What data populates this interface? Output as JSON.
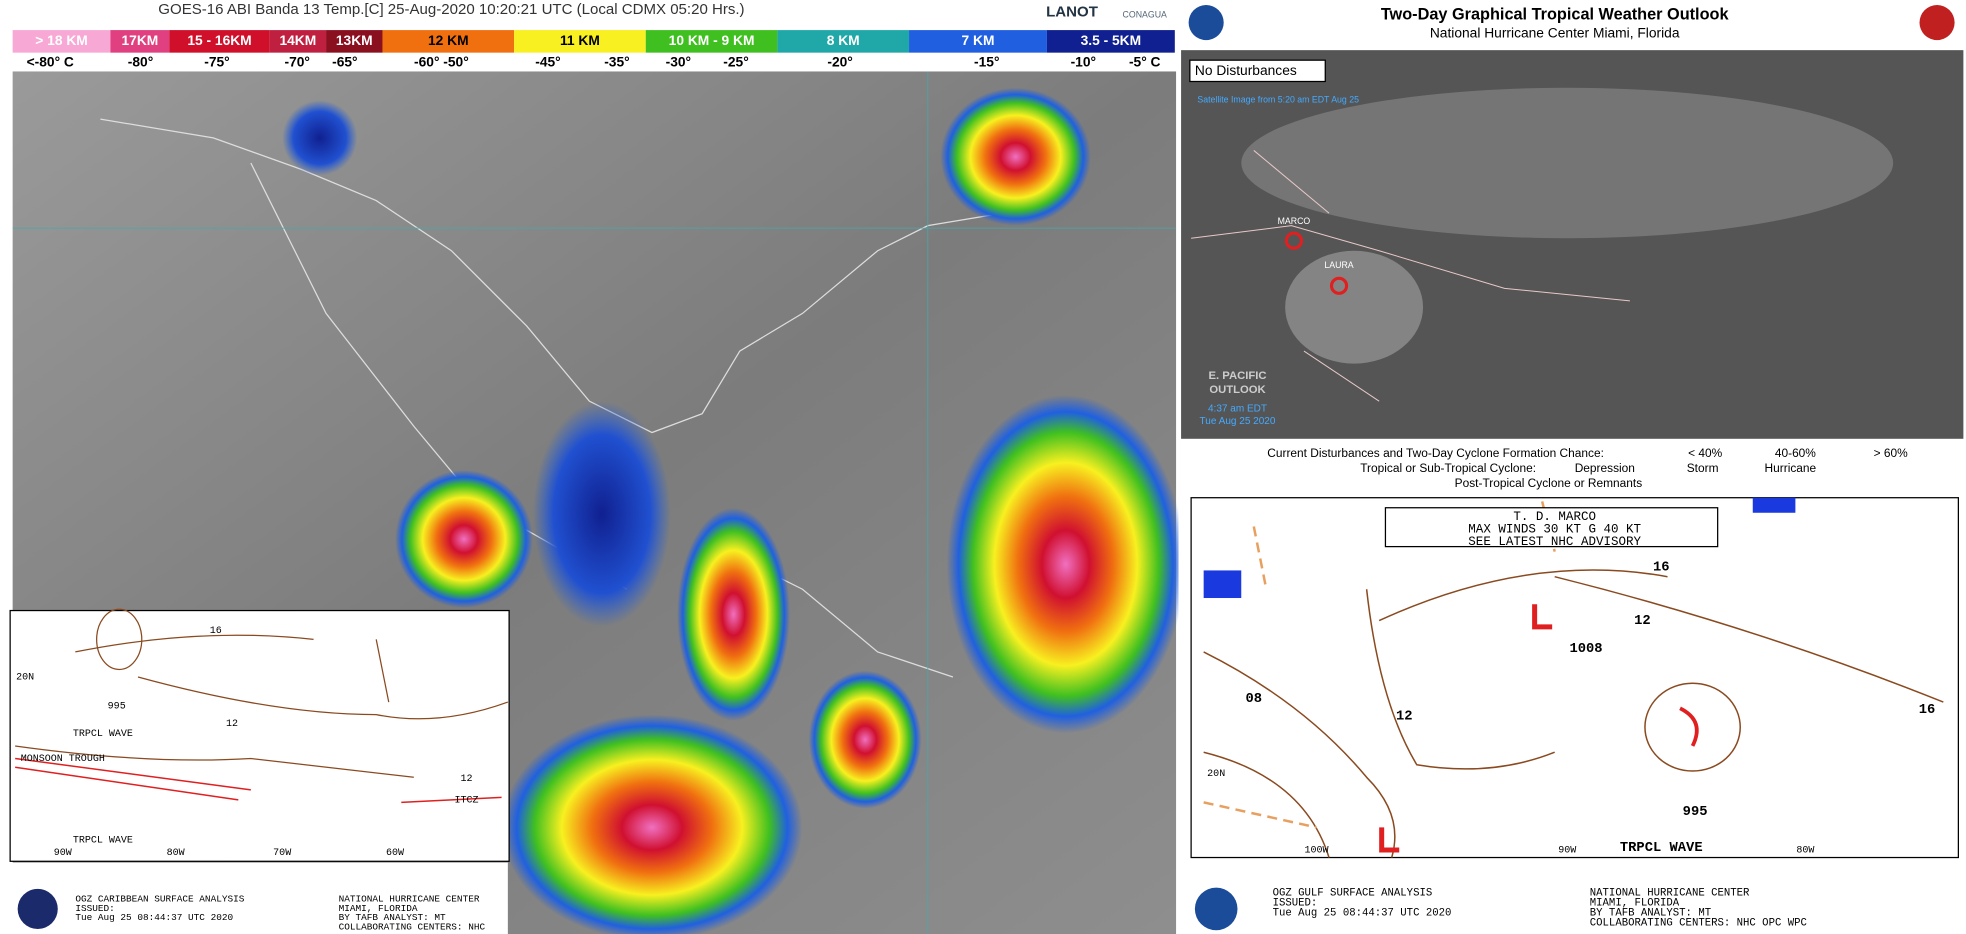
{
  "satellite": {
    "title": "GOES-16 ABI Banda 13 Temp.[C] 25-Aug-2020 10:20:21 UTC (Local CDMX  05:20 Hrs.)",
    "logos": [
      "LANOT",
      "CONAGUA"
    ],
    "heights": [
      "> 18 KM",
      "17KM",
      "15 - 16KM",
      "14KM",
      "13KM",
      "12 KM",
      "11 KM",
      "10 KM - 9 KM",
      "8 KM",
      "7 KM",
      "3.5 - 5KM"
    ],
    "temps": [
      "<-80° C",
      "-80°",
      "-75°",
      "-70°",
      "-65°",
      "-60°  -50°",
      "-45°",
      "-35°",
      "-30°",
      "-25°",
      "-20°",
      "-15°",
      "-10°",
      "-5°  C"
    ]
  },
  "caribbean": {
    "labels": [
      "TRPCL WAVE",
      "MONSOON TROUGH",
      "TRPCL WAVE",
      "ITCZ",
      "995",
      "12",
      "16",
      "12",
      "20N",
      "90W",
      "80W",
      "70W",
      "60W"
    ],
    "footer": [
      "OGZ CARIBBEAN SURFACE ANALYSIS",
      "ISSUED:",
      "Tue Aug 25 08:44:37 UTC 2020",
      "NATIONAL HURRICANE CENTER",
      "MIAMI, FLORIDA",
      "BY TAFB ANALYST: MT",
      "COLLABORATING CENTERS: NHC"
    ]
  },
  "outlook": {
    "title": "Two-Day Graphical Tropical Weather Outlook",
    "subtitle": "National Hurricane Center  Miami, Florida",
    "status": "No Disturbances",
    "image_time": "Satellite Image from 5:20 am EDT Aug 25",
    "storms": [
      "MARCO",
      "LAURA"
    ],
    "epac": [
      "E. PACIFIC",
      "OUTLOOK"
    ],
    "issued": [
      "4:37 am EDT",
      "Tue Aug 25 2020"
    ],
    "legend": [
      "Current Disturbances and Two-Day Cyclone Formation Chance:",
      "< 40%",
      "40-60%",
      "> 60%",
      "Tropical or Sub-Tropical Cyclone:",
      "Depression",
      "Storm",
      "Hurricane",
      "Post-Tropical Cyclone or Remnants"
    ]
  },
  "gulf": {
    "advisory": [
      "T. D. MARCO",
      "MAX WINDS 30 KT G 40 KT",
      "SEE LATEST NHC ADVISORY"
    ],
    "labels": [
      "1008",
      "995",
      "12",
      "16",
      "08",
      "12",
      "16",
      "TRPCL WAVE",
      "20N",
      "100W",
      "90W",
      "80W"
    ],
    "footer": [
      "OGZ GULF SURFACE ANALYSIS",
      "ISSUED:",
      "Tue Aug 25 08:44:37 UTC 2020",
      "NATIONAL HURRICANE CENTER",
      "MIAMI, FLORIDA",
      "BY TAFB ANALYST: MT",
      "COLLABORATING CENTERS: NHC OPC WPC"
    ]
  }
}
